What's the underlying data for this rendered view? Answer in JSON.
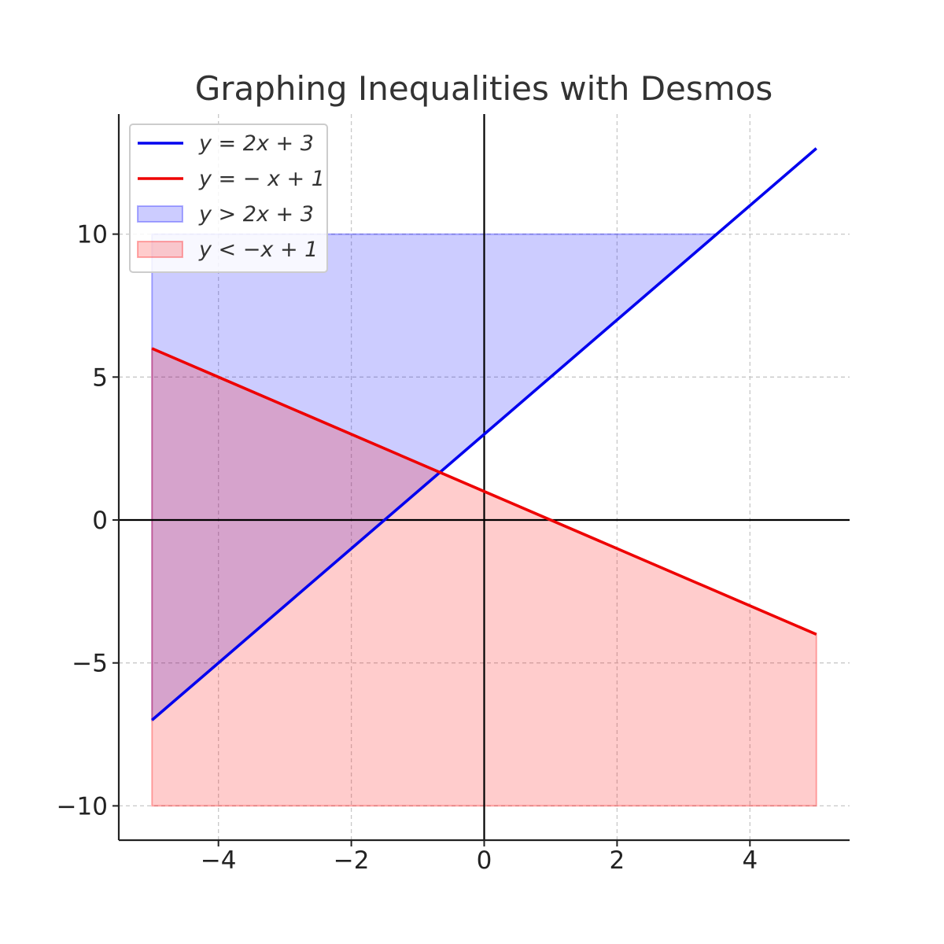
{
  "chart_data": {
    "type": "line",
    "title": "Graphing Inequalities with Desmos",
    "xlabel": "",
    "ylabel": "",
    "xlim": [
      -5.5,
      5.5
    ],
    "ylim": [
      -11.2,
      14.2
    ],
    "x_ticks": [
      -4,
      -2,
      0,
      2,
      4
    ],
    "y_ticks": [
      -10,
      -5,
      0,
      5,
      10
    ],
    "x_tick_labels": [
      "−4",
      "−2",
      "0",
      "2",
      "4"
    ],
    "y_tick_labels": [
      "−10",
      "−5",
      "0",
      "5",
      "10"
    ],
    "grid": true,
    "legend_position": "top-left",
    "series": [
      {
        "name": "y = 2x + 3",
        "kind": "line",
        "color": "#0000ee",
        "x": [
          -5,
          5
        ],
        "y": [
          -7,
          13
        ]
      },
      {
        "name": "y = − x + 1",
        "kind": "line",
        "color": "#ee0000",
        "x": [
          -5,
          5
        ],
        "y": [
          6,
          -4
        ]
      }
    ],
    "regions": [
      {
        "name": "y > 2x + 3",
        "color": "#0000ff",
        "opacity": 0.2,
        "x_range": [
          -5,
          5
        ],
        "lower": "2x+3",
        "upper": 10
      },
      {
        "name": "y < −x + 1",
        "color": "#ff0000",
        "opacity": 0.2,
        "x_range": [
          -5,
          5
        ],
        "lower": -10,
        "upper": "-x+1"
      }
    ]
  }
}
